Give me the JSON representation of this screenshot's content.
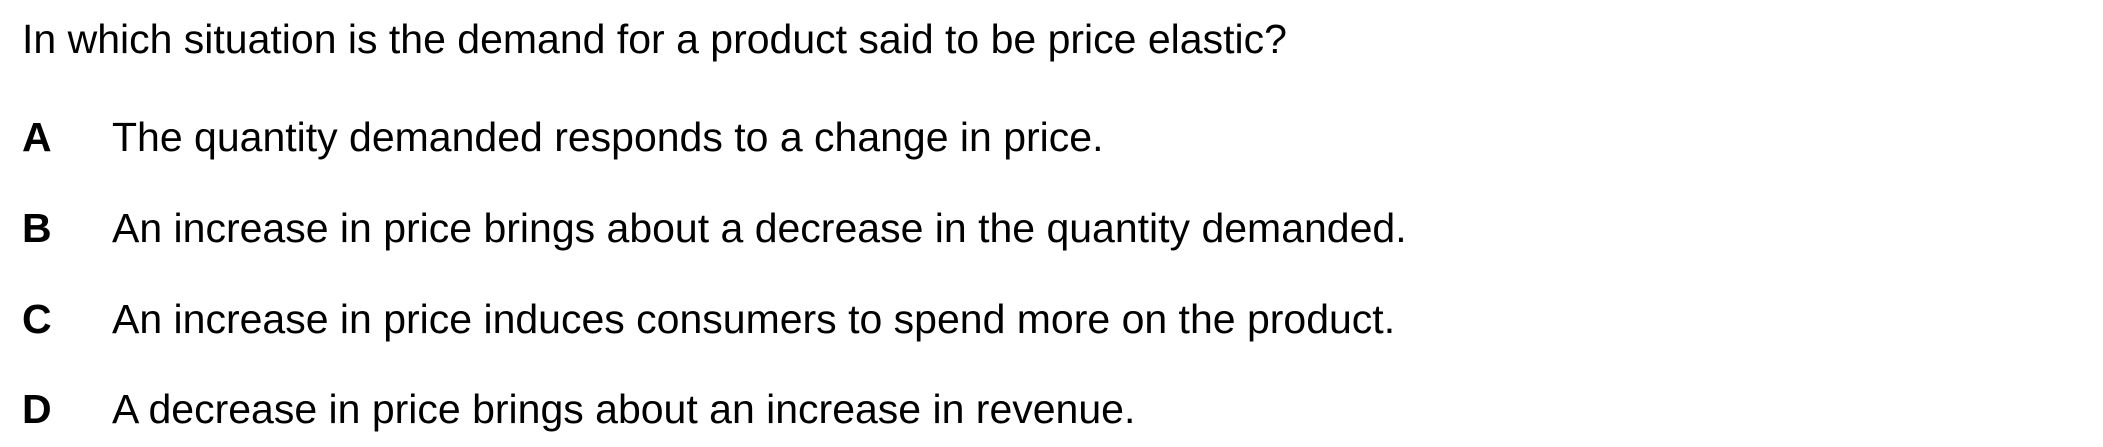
{
  "question": {
    "text": "In which situation is the demand for a product said to be price elastic?"
  },
  "options": [
    {
      "letter": "A",
      "text": "The quantity demanded responds to a change in price."
    },
    {
      "letter": "B",
      "text": "An increase in price brings about a decrease in the quantity demanded."
    },
    {
      "letter": "C",
      "text": "An increase in price induces consumers to spend more on the product."
    },
    {
      "letter": "D",
      "text": "A decrease in price brings about an increase in revenue."
    }
  ]
}
